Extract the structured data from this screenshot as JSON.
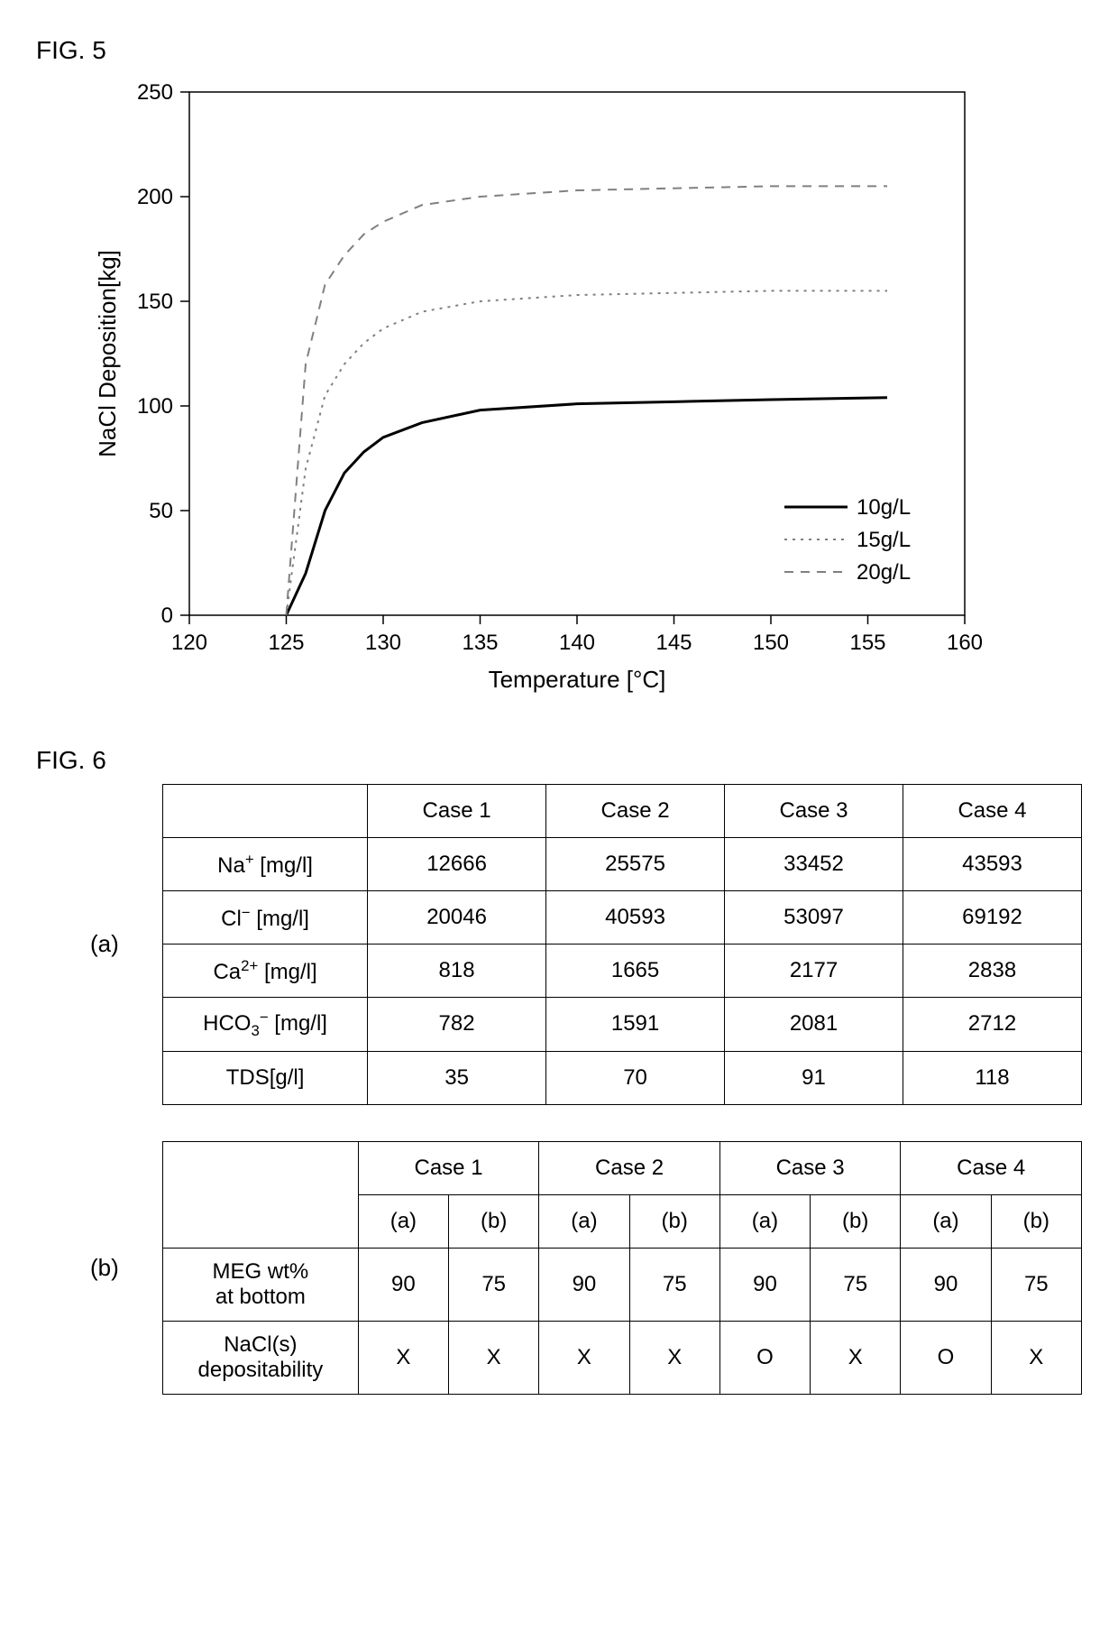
{
  "fig5": {
    "label": "FIG. 5",
    "chart": {
      "type": "line",
      "xlabel": "Temperature [°C]",
      "ylabel": "NaCl Deposition[kg]",
      "label_fontsize": 26,
      "tick_fontsize": 24,
      "xlim": [
        120,
        160
      ],
      "ylim": [
        0,
        250
      ],
      "xtick_step": 5,
      "ytick_step": 50,
      "xticks": [
        120,
        125,
        130,
        135,
        140,
        145,
        150,
        155,
        160
      ],
      "yticks": [
        0,
        50,
        100,
        150,
        200,
        250
      ],
      "background_color": "#ffffff",
      "border_color": "#000000",
      "legend_position": "bottom-right",
      "series": [
        {
          "name": "10g/L",
          "color": "#000000",
          "dash": "solid",
          "line_width": 3,
          "x": [
            125,
            126,
            127,
            128,
            129,
            130,
            132,
            135,
            140,
            145,
            150,
            156
          ],
          "y": [
            0,
            20,
            50,
            68,
            78,
            85,
            92,
            98,
            101,
            102,
            103,
            104
          ]
        },
        {
          "name": "15g/L",
          "color": "#808080",
          "dash": "dotted",
          "line_width": 2,
          "x": [
            125,
            126,
            127,
            128,
            129,
            130,
            132,
            135,
            140,
            145,
            150,
            156
          ],
          "y": [
            0,
            70,
            105,
            120,
            130,
            137,
            145,
            150,
            153,
            154,
            155,
            155
          ]
        },
        {
          "name": "20g/L",
          "color": "#808080",
          "dash": "dashed",
          "line_width": 2,
          "x": [
            125,
            126,
            127,
            128,
            129,
            130,
            132,
            135,
            140,
            145,
            150,
            156
          ],
          "y": [
            0,
            120,
            158,
            172,
            182,
            188,
            196,
            200,
            203,
            204,
            205,
            205
          ]
        }
      ]
    }
  },
  "fig6": {
    "label": "FIG. 6",
    "tableA": {
      "side": "(a)",
      "headers": [
        "",
        "Case 1",
        "Case 2",
        "Case 3",
        "Case 4"
      ],
      "rows": [
        {
          "label_html": "Na<sup>+</sup> [mg/l]",
          "vals": [
            "12666",
            "25575",
            "33452",
            "43593"
          ]
        },
        {
          "label_html": "Cl<sup>−</sup> [mg/l]",
          "vals": [
            "20046",
            "40593",
            "53097",
            "69192"
          ]
        },
        {
          "label_html": "Ca<sup>2+</sup> [mg/l]",
          "vals": [
            "818",
            "1665",
            "2177",
            "2838"
          ]
        },
        {
          "label_html": "HCO<sub>3</sub><sup>−</sup> [mg/l]",
          "vals": [
            "782",
            "1591",
            "2081",
            "2712"
          ]
        },
        {
          "label_html": "TDS[g/l]",
          "vals": [
            "35",
            "70",
            "91",
            "118"
          ]
        }
      ]
    },
    "tableB": {
      "side": "(b)",
      "top_headers": [
        "Case 1",
        "Case 2",
        "Case 3",
        "Case 4"
      ],
      "sub_headers": [
        "(a)",
        "(b)"
      ],
      "rows": [
        {
          "label": "MEG wt%\nat bottom",
          "vals": [
            "90",
            "75",
            "90",
            "75",
            "90",
            "75",
            "90",
            "75"
          ]
        },
        {
          "label": "NaCl(s)\ndepositability",
          "vals": [
            "X",
            "X",
            "X",
            "X",
            "O",
            "X",
            "O",
            "X"
          ]
        }
      ]
    }
  }
}
